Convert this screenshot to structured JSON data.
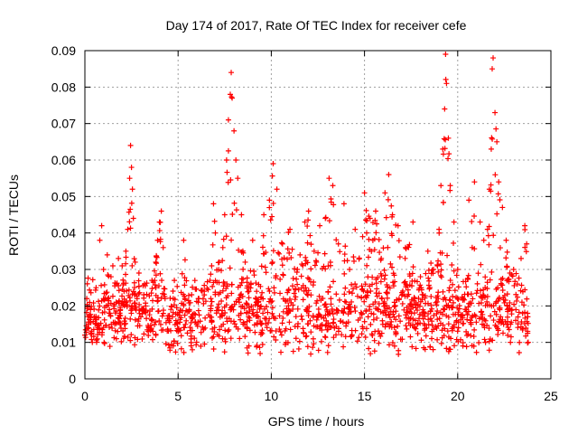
{
  "chart_data": {
    "type": "scatter",
    "title": "Day 174 of 2017, Rate Of TEC Index for receiver cefe",
    "xlabel": "GPS time / hours",
    "ylabel": "ROTI / TECUs",
    "xlim": [
      0,
      25
    ],
    "ylim": [
      0,
      0.09
    ],
    "x_ticks": [
      "0",
      "5",
      "10",
      "15",
      "20",
      "25"
    ],
    "y_ticks": [
      "0",
      "0.01",
      "0.02",
      "0.03",
      "0.04",
      "0.05",
      "0.06",
      "0.07",
      "0.08",
      "0.09"
    ],
    "grid": true,
    "marker": "plus",
    "color": "#ff0000",
    "series": [
      {
        "x": [
          0.0,
          0.1,
          0.2,
          0.3,
          0.4,
          0.5,
          0.6,
          0.7,
          0.8,
          0.9,
          1.0,
          1.1,
          1.2,
          1.3,
          1.4,
          1.5,
          1.6,
          1.7,
          1.8,
          1.9,
          2.0,
          2.1,
          2.2,
          2.3,
          2.4,
          2.45,
          2.5,
          2.55,
          2.6,
          2.7,
          2.8,
          2.9,
          3.0,
          3.2,
          3.4,
          3.6,
          3.8,
          3.9,
          4.0,
          4.1,
          4.2,
          4.3,
          4.5,
          4.8,
          5.0,
          5.3,
          5.6,
          6.0,
          6.4,
          6.8,
          6.9,
          7.0,
          7.2,
          7.4,
          7.5,
          7.6,
          7.7,
          7.8,
          7.85,
          7.9,
          8.0,
          8.1,
          8.2,
          8.4,
          8.6,
          8.8,
          9.0,
          9.3,
          9.6,
          9.9,
          10.1,
          10.3,
          10.6,
          11.0,
          11.4,
          11.8,
          12.0,
          12.3,
          12.6,
          12.9,
          13.1,
          13.3,
          13.6,
          13.9,
          14.2,
          14.5,
          14.9,
          15.0,
          15.3,
          15.6,
          15.9,
          16.1,
          16.3,
          16.5,
          16.8,
          17.2,
          17.6,
          18.0,
          18.4,
          18.7,
          19.0,
          19.1,
          19.2,
          19.3,
          19.35,
          19.4,
          19.5,
          19.6,
          19.8,
          20.0,
          20.3,
          20.6,
          20.9,
          21.2,
          21.4,
          21.6,
          21.7,
          21.8,
          21.85,
          21.9,
          22.0,
          22.1,
          22.2,
          22.4,
          22.6,
          22.8,
          23.0,
          23.2,
          23.4,
          23.6,
          23.7
        ],
        "y": [
          0.012,
          0.022,
          0.015,
          0.019,
          0.01,
          0.017,
          0.025,
          0.014,
          0.038,
          0.042,
          0.03,
          0.022,
          0.034,
          0.018,
          0.028,
          0.031,
          0.015,
          0.026,
          0.033,
          0.019,
          0.031,
          0.024,
          0.035,
          0.041,
          0.055,
          0.064,
          0.058,
          0.052,
          0.044,
          0.032,
          0.022,
          0.029,
          0.017,
          0.026,
          0.013,
          0.027,
          0.032,
          0.038,
          0.043,
          0.046,
          0.036,
          0.022,
          0.016,
          0.027,
          0.013,
          0.038,
          0.019,
          0.015,
          0.024,
          0.031,
          0.048,
          0.04,
          0.032,
          0.036,
          0.045,
          0.06,
          0.071,
          0.078,
          0.084,
          0.077,
          0.068,
          0.06,
          0.055,
          0.045,
          0.032,
          0.024,
          0.038,
          0.021,
          0.045,
          0.049,
          0.059,
          0.052,
          0.037,
          0.041,
          0.03,
          0.043,
          0.046,
          0.035,
          0.042,
          0.044,
          0.055,
          0.053,
          0.037,
          0.048,
          0.03,
          0.041,
          0.039,
          0.051,
          0.044,
          0.046,
          0.033,
          0.051,
          0.056,
          0.045,
          0.042,
          0.036,
          0.043,
          0.028,
          0.035,
          0.03,
          0.041,
          0.053,
          0.063,
          0.074,
          0.089,
          0.081,
          0.066,
          0.053,
          0.043,
          0.03,
          0.022,
          0.049,
          0.054,
          0.043,
          0.038,
          0.041,
          0.052,
          0.063,
          0.085,
          0.088,
          0.073,
          0.065,
          0.054,
          0.047,
          0.038,
          0.029,
          0.03,
          0.026,
          0.033,
          0.042,
          0.037
        ]
      }
    ],
    "noise_floor_note": ""
  }
}
